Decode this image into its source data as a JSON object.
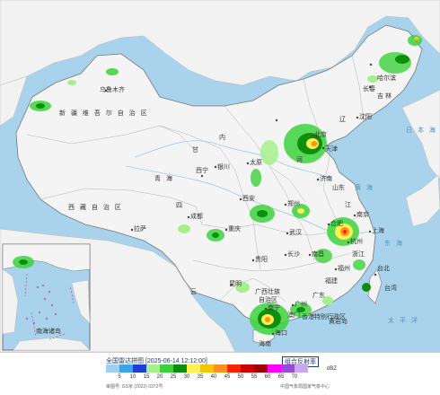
{
  "map": {
    "labels": {
      "xinjiang": "新 疆 维 吾 尔 自 治 区",
      "urumqi": "乌鲁木齐",
      "xizang": "西 藏 自 治 区",
      "lhasa": "拉萨",
      "qinghai": "青 海",
      "xining": "西宁",
      "gansu": "甘",
      "inner_mongolia": "内",
      "harbin": "哈尔滨",
      "jilin": "吉 林",
      "changchun": "长春",
      "liaoning": "辽",
      "shenyang": "沈阳",
      "beijing": "北京",
      "tianjin": "天津",
      "hebei": "河",
      "jinan": "济南",
      "shandong": "山东",
      "taiyuan": "太原",
      "yinchuan": "银川",
      "xian": "西安",
      "zhengzhou": "郑州",
      "wuhan": "武汉",
      "hefei": "合肥",
      "nanjing": "南京",
      "jiangsu": "江",
      "shanghai": "上海",
      "hangzhou": "杭州",
      "zhejiang": "浙江",
      "chengdu": "成都",
      "sichuan": "四",
      "chongqing": "重庆",
      "changsha": "长沙",
      "nanchang": "南昌",
      "fuzhou": "福州",
      "fujian": "福建",
      "taipei": "台北",
      "taiwan": "台湾",
      "guiyang": "贵阳",
      "kunming": "昆明",
      "yunnan": "云",
      "guangxi": "广西壮族",
      "zizhiqu": "自治区",
      "nanning": "南宁",
      "guangzhou": "广州",
      "guangdong": "广东",
      "aomen": "澳门",
      "xianggang": "香港特别行政区",
      "haikou": "海口",
      "hainan": "海南",
      "huanghai": "黄 海",
      "donghai": "东 海",
      "taipingyang": "太 平 洋",
      "japan_sea": "日 本 海",
      "huangyan": "黄岩岛",
      "nanhai_zhudao": "南海诸岛"
    }
  },
  "legend": {
    "title": "全国雷达拼图 [2025-06-14 12:12:00]",
    "product": "组合反射率",
    "unit": "dBZ",
    "approval_no": "审图号: GS京 (2022) 0372号",
    "org": "中国气象局国家气象中心",
    "tick_labels": [
      "5",
      "10",
      "15",
      "20",
      "25",
      "30",
      "35",
      "40",
      "45",
      "50",
      "55",
      "60",
      "65",
      "70"
    ],
    "colors": [
      "#9dd3f0",
      "#3ba4e8",
      "#1b3fd8",
      "#a5f08c",
      "#3cd23c",
      "#0d8f0d",
      "#fff050",
      "#f2c700",
      "#ff9020",
      "#ff2000",
      "#cc0000",
      "#9c0000",
      "#ff00ff",
      "#9a4bd8",
      "#c8a8f0"
    ]
  }
}
